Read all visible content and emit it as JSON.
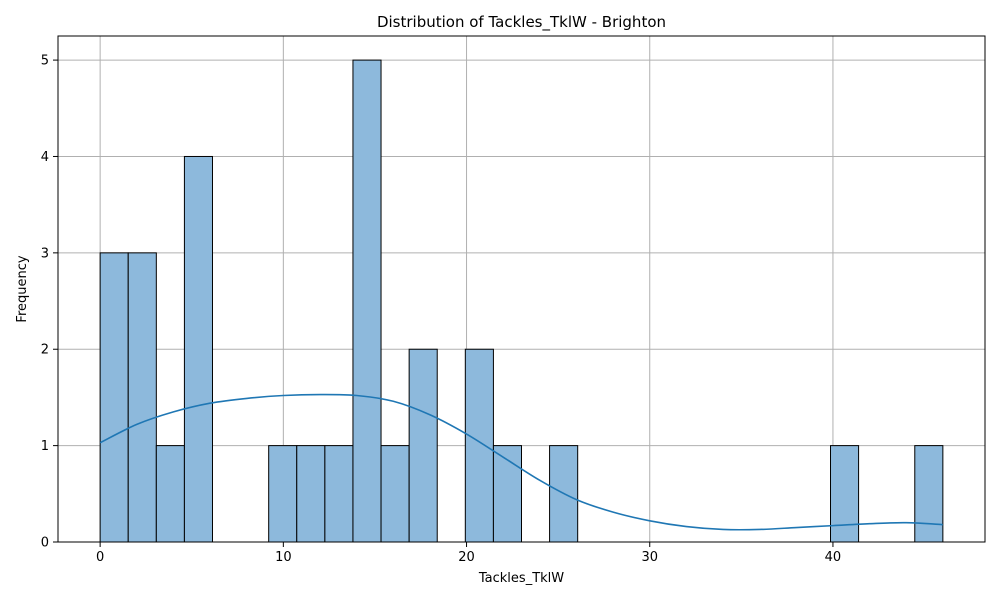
{
  "chart_data": {
    "type": "bar",
    "subtype": "histogram_with_kde",
    "title": "Distribution of Tackles_TklW - Brighton",
    "xlabel": "Tackles_TklW",
    "ylabel": "Frequency",
    "xlim": [
      -2.3,
      48.3
    ],
    "ylim": [
      0,
      5.25
    ],
    "xticks": [
      0,
      10,
      20,
      30,
      40
    ],
    "yticks": [
      0,
      1,
      2,
      3,
      4,
      5
    ],
    "grid": true,
    "bin_width": 1.533,
    "bins": [
      {
        "start": 0.0,
        "end": 1.533,
        "count": 3
      },
      {
        "start": 1.533,
        "end": 3.067,
        "count": 3
      },
      {
        "start": 3.067,
        "end": 4.6,
        "count": 1
      },
      {
        "start": 4.6,
        "end": 6.133,
        "count": 4
      },
      {
        "start": 6.133,
        "end": 7.667,
        "count": 0
      },
      {
        "start": 7.667,
        "end": 9.2,
        "count": 0
      },
      {
        "start": 9.2,
        "end": 10.733,
        "count": 1
      },
      {
        "start": 10.733,
        "end": 12.267,
        "count": 1
      },
      {
        "start": 12.267,
        "end": 13.8,
        "count": 1
      },
      {
        "start": 13.8,
        "end": 15.333,
        "count": 5
      },
      {
        "start": 15.333,
        "end": 16.867,
        "count": 1
      },
      {
        "start": 16.867,
        "end": 18.4,
        "count": 2
      },
      {
        "start": 18.4,
        "end": 19.933,
        "count": 0
      },
      {
        "start": 19.933,
        "end": 21.467,
        "count": 2
      },
      {
        "start": 21.467,
        "end": 23.0,
        "count": 1
      },
      {
        "start": 23.0,
        "end": 24.533,
        "count": 0
      },
      {
        "start": 24.533,
        "end": 26.067,
        "count": 1
      },
      {
        "start": 26.067,
        "end": 27.6,
        "count": 0
      },
      {
        "start": 27.6,
        "end": 29.133,
        "count": 0
      },
      {
        "start": 29.133,
        "end": 30.667,
        "count": 0
      },
      {
        "start": 30.667,
        "end": 32.2,
        "count": 0
      },
      {
        "start": 32.2,
        "end": 33.733,
        "count": 0
      },
      {
        "start": 33.733,
        "end": 35.267,
        "count": 0
      },
      {
        "start": 35.267,
        "end": 36.8,
        "count": 0
      },
      {
        "start": 36.8,
        "end": 38.333,
        "count": 0
      },
      {
        "start": 38.333,
        "end": 39.867,
        "count": 0
      },
      {
        "start": 39.867,
        "end": 41.4,
        "count": 1
      },
      {
        "start": 41.4,
        "end": 42.933,
        "count": 0
      },
      {
        "start": 42.933,
        "end": 44.467,
        "count": 0
      },
      {
        "start": 44.467,
        "end": 46.0,
        "count": 1
      }
    ],
    "kde": {
      "x": [
        0,
        2,
        4,
        6,
        8,
        10,
        12,
        14,
        16,
        18,
        20,
        22,
        24,
        26,
        28,
        30,
        32,
        34,
        36,
        38,
        40,
        42,
        44,
        46
      ],
      "y": [
        1.03,
        1.22,
        1.35,
        1.44,
        1.49,
        1.52,
        1.53,
        1.52,
        1.46,
        1.32,
        1.12,
        0.88,
        0.64,
        0.44,
        0.31,
        0.22,
        0.16,
        0.13,
        0.13,
        0.15,
        0.17,
        0.19,
        0.2,
        0.18
      ]
    },
    "colors": {
      "bar_fill": "#8db9dc",
      "bar_edge": "#000000",
      "kde_line": "#1f77b4",
      "grid": "#b0b0b0"
    }
  }
}
